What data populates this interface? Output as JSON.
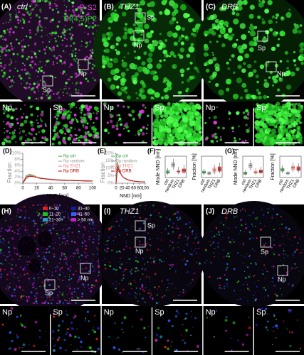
{
  "panels_top": [
    {
      "label": "(A)",
      "condition": "ctrl",
      "roi_labels": [
        "Np",
        "Sp"
      ]
    },
    {
      "label": "(B)",
      "condition": "THZ1",
      "roi_labels": [
        "Np",
        "Sp"
      ]
    },
    {
      "label": "(C)",
      "condition": "DRB",
      "roi_labels": [
        "Np",
        "Sp"
      ]
    }
  ],
  "legend_top": [
    {
      "label": "P-S2",
      "color": "#e040e0"
    },
    {
      "label": "PI(4,5)P2",
      "color": "#30d030"
    }
  ],
  "zooms_top": [
    "Np",
    "Sp",
    "Np",
    "Sp",
    "Np",
    "Sp"
  ],
  "panels_bottom": [
    {
      "label": "(H)",
      "roi_labels": [
        "Np",
        "Sp"
      ]
    },
    {
      "label": "(I)",
      "condition": "THZ1",
      "roi_labels": [
        "Np",
        "Sp"
      ]
    },
    {
      "label": "(J)",
      "condition": "DRB",
      "roi_labels": [
        "Np",
        "Sp"
      ]
    }
  ],
  "legend_bottom": [
    {
      "label": "0–10",
      "color": "#e02020"
    },
    {
      "label": "31–40",
      "color": "#1a1aa0"
    },
    {
      "label": "11–20",
      "color": "#20c020"
    },
    {
      "label": "41–50",
      "color": "#3060ff"
    },
    {
      "label": "21–30",
      "color": "#20a0c0"
    },
    {
      "label": "> 50 nm",
      "color": "#c020c0"
    }
  ],
  "zooms_bottom": [
    "Np",
    "Sp",
    "Np",
    "Sp",
    "Np",
    "Sp"
  ],
  "chart_data": [
    {
      "type": "line",
      "panel_label": "(D)",
      "ylabel": "Fraction",
      "xlabel": "NND [nm]",
      "x": [
        0,
        5,
        10,
        15,
        20,
        25,
        30,
        40,
        50,
        60,
        70,
        80,
        90,
        100
      ],
      "xlim": [
        0,
        100
      ],
      "xticks": [
        0,
        20,
        40,
        60,
        80,
        100
      ],
      "ylim": [
        0,
        10
      ],
      "yticks": [
        {
          "value": 0,
          "label": "0%"
        },
        {
          "value": 2,
          "label": "2%"
        },
        {
          "value": 4,
          "label": "4%"
        },
        {
          "value": 6,
          "label": "6%"
        },
        {
          "value": 8,
          "label": "8%"
        },
        {
          "value": 10,
          "label": "10%"
        }
      ],
      "series": [
        {
          "name": "Np ctrl",
          "color": "#3a9a3a",
          "values": [
            0,
            2.5,
            3.0,
            2.6,
            2.1,
            1.8,
            1.6,
            1.3,
            1.1,
            1.0,
            0.9,
            0.8,
            0.8,
            0.7
          ]
        },
        {
          "name": "Np random",
          "color": "#999999",
          "values": [
            0,
            1.5,
            2.2,
            2.2,
            2.0,
            1.8,
            1.6,
            1.4,
            1.2,
            1.1,
            1.0,
            0.9,
            0.9,
            0.8
          ]
        },
        {
          "name": "Np THZ1",
          "color": "#f08080",
          "values": [
            0,
            2.2,
            2.6,
            2.4,
            2.0,
            1.7,
            1.5,
            1.3,
            1.1,
            1.0,
            0.9,
            0.8,
            0.8,
            0.7
          ]
        },
        {
          "name": "Np DRB",
          "color": "#c00000",
          "values": [
            0,
            2.0,
            2.4,
            2.2,
            1.9,
            1.6,
            1.5,
            1.2,
            1.0,
            0.9,
            0.9,
            0.8,
            0.7,
            0.7
          ]
        }
      ]
    },
    {
      "type": "line",
      "panel_label": "(E)",
      "ylabel": "Fraction",
      "xlabel": "NND [nm]",
      "x": [
        0,
        5,
        10,
        15,
        20,
        25,
        30,
        40,
        50,
        60,
        70,
        80,
        90,
        100
      ],
      "xlim": [
        0,
        100
      ],
      "xticks": [
        0,
        20,
        40,
        60,
        80,
        100
      ],
      "ylim": [
        0,
        20
      ],
      "yticks": [
        {
          "value": 0,
          "label": "0%"
        },
        {
          "value": 5,
          "label": "5%"
        },
        {
          "value": 10,
          "label": "10%"
        },
        {
          "value": 15,
          "label": "15%"
        },
        {
          "value": 20,
          "label": "20%"
        }
      ],
      "series": [
        {
          "name": "Sp ctrl",
          "color": "#3a9a3a",
          "values": [
            0,
            14,
            10,
            7,
            5,
            4,
            3.2,
            2.2,
            1.7,
            1.4,
            1.2,
            1.0,
            0.9,
            0.8
          ]
        },
        {
          "name": "Sp random",
          "color": "#999999",
          "values": [
            0,
            9,
            8,
            6.5,
            5,
            4,
            3.4,
            2.5,
            1.9,
            1.5,
            1.3,
            1.1,
            1.0,
            0.9
          ]
        },
        {
          "name": "Sp THZ1",
          "color": "#f08080",
          "values": [
            0,
            12,
            9.5,
            7,
            5,
            4,
            3.1,
            2.2,
            1.7,
            1.4,
            1.2,
            1.0,
            0.9,
            0.8
          ]
        },
        {
          "name": "Sp DRB",
          "color": "#c00000",
          "values": [
            0,
            11,
            9,
            6.8,
            5,
            4,
            3.2,
            2.3,
            1.8,
            1.4,
            1.2,
            1.0,
            0.9,
            0.8
          ]
        }
      ]
    },
    {
      "type": "box",
      "panel_label": "(F)",
      "ylabel": "Mode NND [nm]",
      "ylim": [
        0,
        40
      ],
      "categories": [
        "ctrl",
        "random",
        "THZ1",
        "DRB"
      ],
      "colors": [
        "#3a9a3a",
        "#999999",
        "#f08080",
        "#c00000"
      ],
      "boxes": [
        {
          "min": 5,
          "q1": 8,
          "median": 10,
          "q3": 13,
          "max": 18
        },
        {
          "min": 15,
          "q1": 20,
          "median": 24,
          "q3": 28,
          "max": 35
        },
        {
          "min": 6,
          "q1": 9,
          "median": 11,
          "q3": 14,
          "max": 20
        },
        {
          "min": 7,
          "q1": 10,
          "median": 13,
          "q3": 16,
          "max": 24
        }
      ]
    },
    {
      "type": "box",
      "ylabel": "Fraction [%]",
      "ylim": [
        0,
        20
      ],
      "categories": [
        "ctrl",
        "random",
        "THZ1",
        "DRB"
      ],
      "colors": [
        "#3a9a3a",
        "#999999",
        "#f08080",
        "#c00000"
      ],
      "boxes": [
        {
          "min": 2,
          "q1": 4,
          "median": 5,
          "q3": 6,
          "max": 8
        },
        {
          "min": 2,
          "q1": 3,
          "median": 4,
          "q3": 5,
          "max": 6
        },
        {
          "min": 3,
          "q1": 5,
          "median": 7,
          "q3": 9,
          "max": 12
        },
        {
          "min": 4,
          "q1": 6,
          "median": 8,
          "q3": 10,
          "max": 14
        }
      ]
    },
    {
      "type": "box",
      "panel_label": "(G)",
      "ylabel": "Mode NND [nm]",
      "ylim": [
        0,
        40
      ],
      "categories": [
        "ctrl",
        "random",
        "THZ1",
        "DRB"
      ],
      "colors": [
        "#3a9a3a",
        "#999999",
        "#f08080",
        "#c00000"
      ],
      "boxes": [
        {
          "min": 4,
          "q1": 6,
          "median": 8,
          "q3": 10,
          "max": 14
        },
        {
          "min": 14,
          "q1": 18,
          "median": 22,
          "q3": 26,
          "max": 32
        },
        {
          "min": 5,
          "q1": 8,
          "median": 10,
          "q3": 12,
          "max": 17
        },
        {
          "min": 6,
          "q1": 9,
          "median": 11,
          "q3": 14,
          "max": 20
        }
      ]
    },
    {
      "type": "box",
      "ylabel": "Fraction [%]",
      "ylim": [
        0,
        30
      ],
      "categories": [
        "ctrl",
        "random",
        "THZ1",
        "DRB"
      ],
      "colors": [
        "#3a9a3a",
        "#999999",
        "#f08080",
        "#c00000"
      ],
      "boxes": [
        {
          "min": 6,
          "q1": 9,
          "median": 11,
          "q3": 13,
          "max": 17
        },
        {
          "min": 3,
          "q1": 5,
          "median": 6,
          "q3": 7,
          "max": 9
        },
        {
          "min": 8,
          "q1": 11,
          "median": 14,
          "q3": 16,
          "max": 21
        },
        {
          "min": 7,
          "q1": 10,
          "median": 12,
          "q3": 15,
          "max": 20
        }
      ]
    }
  ]
}
